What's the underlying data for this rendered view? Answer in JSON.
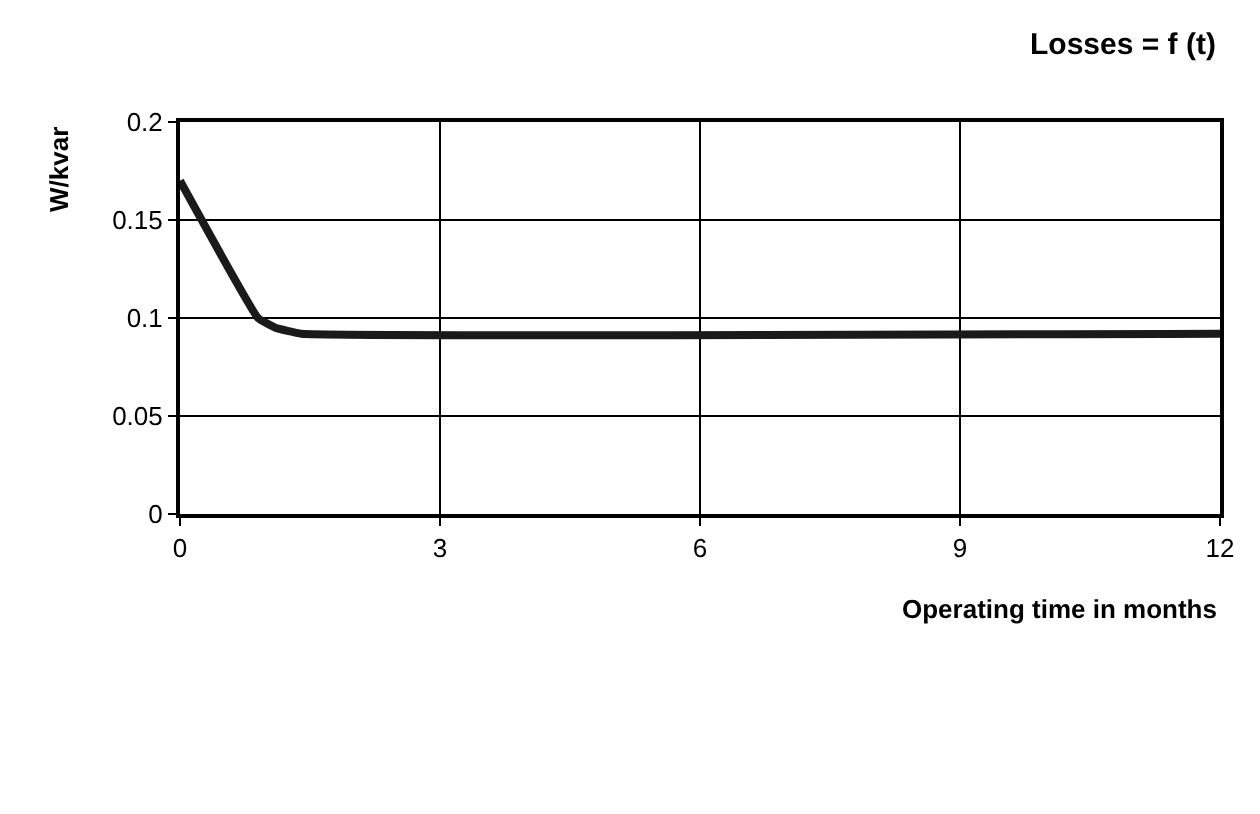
{
  "chart_data": {
    "type": "line",
    "title": "Losses = f (t)",
    "xlabel": "Operating time in months",
    "ylabel": "W/kvar",
    "x": [
      0,
      0.9,
      1.1,
      1.4,
      12
    ],
    "series": [
      {
        "color": "#1a1a1a",
        "values": [
          0.17,
          0.1,
          0.095,
          0.092,
          0.092
        ]
      }
    ],
    "xlim": [
      0,
      12
    ],
    "xticks": [
      0,
      3,
      6,
      9,
      12
    ],
    "ylim": [
      0,
      0.2
    ],
    "yticks": [
      0,
      0.05,
      0.1,
      0.15,
      0.2
    ],
    "grid": true,
    "marker": "none",
    "line_style": "solid"
  }
}
